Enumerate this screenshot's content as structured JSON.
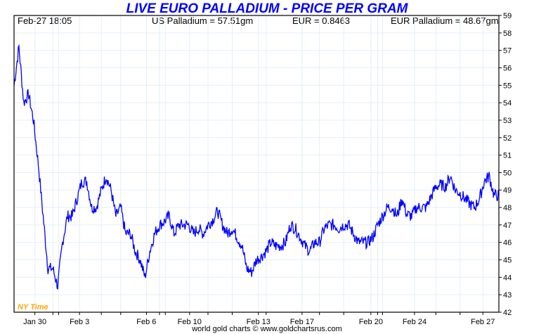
{
  "chart_data": {
    "type": "line",
    "title": "LIVE EURO PALLADIUM - PRICE PER GRAM",
    "info": {
      "timestamp": "Feb-27  18:05",
      "us_price": "US Palladium = 57.51gm",
      "fx": "EUR = 0.8463",
      "eur_price": "EUR Palladium = 48.67gm"
    },
    "timezone_label": "NY Time",
    "footer": "world gold charts © www.goldchartsrus.com",
    "ylim": [
      42,
      59
    ],
    "yticks": [
      "42",
      "43",
      "44",
      "45",
      "46",
      "47",
      "48",
      "49",
      "50",
      "51",
      "52",
      "53",
      "54",
      "55",
      "56",
      "57",
      "58",
      "59"
    ],
    "x_unit": "percent of displayed trading period",
    "xticks": [
      {
        "label": "Jan 30",
        "t": 4.3
      },
      {
        "label": "Feb 3",
        "t": 13.5
      },
      {
        "label": "Feb 6",
        "t": 27.3
      },
      {
        "label": "Feb 10",
        "t": 36.2
      },
      {
        "label": "Feb 13",
        "t": 50.4
      },
      {
        "label": "Feb 17",
        "t": 59.4
      },
      {
        "label": "Feb 20",
        "t": 73.6
      },
      {
        "label": "Feb 24",
        "t": 82.6
      },
      {
        "label": "Feb 27",
        "t": 96.7
      }
    ],
    "series": [
      {
        "name": "EUR Palladium per gram",
        "color": "#0000ff",
        "values": [
          55,
          57.2,
          54,
          54.5,
          53,
          50.5,
          47.5,
          44.5,
          44.5,
          43.5,
          46,
          47.5,
          47.5,
          48.5,
          49.5,
          49.5,
          48,
          48,
          49,
          49.8,
          49,
          47.5,
          48,
          46.5,
          46.5,
          45.5,
          45,
          44,
          45.5,
          46.5,
          47,
          47.2,
          47.5,
          46.5,
          47,
          47,
          47,
          46.5,
          46.8,
          46.5,
          47,
          47.3,
          47.8,
          47,
          46.5,
          46.8,
          46.3,
          45.8,
          44.5,
          44.3,
          45,
          45.2,
          45.5,
          46,
          45.8,
          45.8,
          46,
          47,
          46.8,
          46.3,
          45.8,
          45.5,
          46,
          46,
          46.8,
          47,
          47,
          46.8,
          47,
          47,
          46.5,
          46,
          46,
          46,
          46.3,
          47,
          47.5,
          48,
          48,
          47.5,
          48.5,
          47.6,
          47.5,
          48,
          48,
          48,
          48.6,
          49.2,
          49.3,
          49.2,
          49.8,
          49,
          48.8,
          48.5,
          48.2,
          48,
          48.5,
          49.5,
          49.8,
          48.7,
          48.7
        ]
      }
    ]
  }
}
